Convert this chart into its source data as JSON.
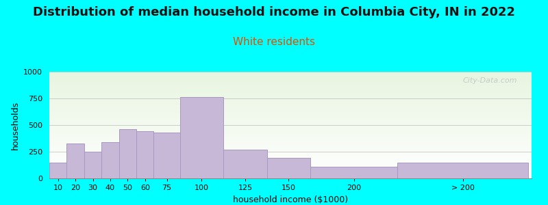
{
  "title": "Distribution of median household income in Columbia City, IN in 2022",
  "subtitle": "White residents",
  "xlabel": "household income ($1000)",
  "ylabel": "households",
  "bar_labels": [
    "10",
    "20",
    "30",
    "40",
    "50",
    "60",
    "75",
    "100",
    "125",
    "150",
    "200",
    "> 200"
  ],
  "bar_values": [
    150,
    325,
    250,
    340,
    460,
    440,
    430,
    760,
    270,
    195,
    110,
    150
  ],
  "bar_color": "#c8b8d8",
  "bar_edge_color": "#a898c0",
  "ylim": [
    0,
    1000
  ],
  "yticks": [
    0,
    250,
    500,
    750,
    1000
  ],
  "bg_color": "#00FFFF",
  "plot_bg_top": "#e8f5e0",
  "plot_bg_bottom": "#ffffff",
  "title_fontsize": 13,
  "subtitle_fontsize": 11,
  "subtitle_color": "#e05000",
  "axis_label_fontsize": 9,
  "tick_fontsize": 8,
  "watermark_text": "City-Data.com"
}
